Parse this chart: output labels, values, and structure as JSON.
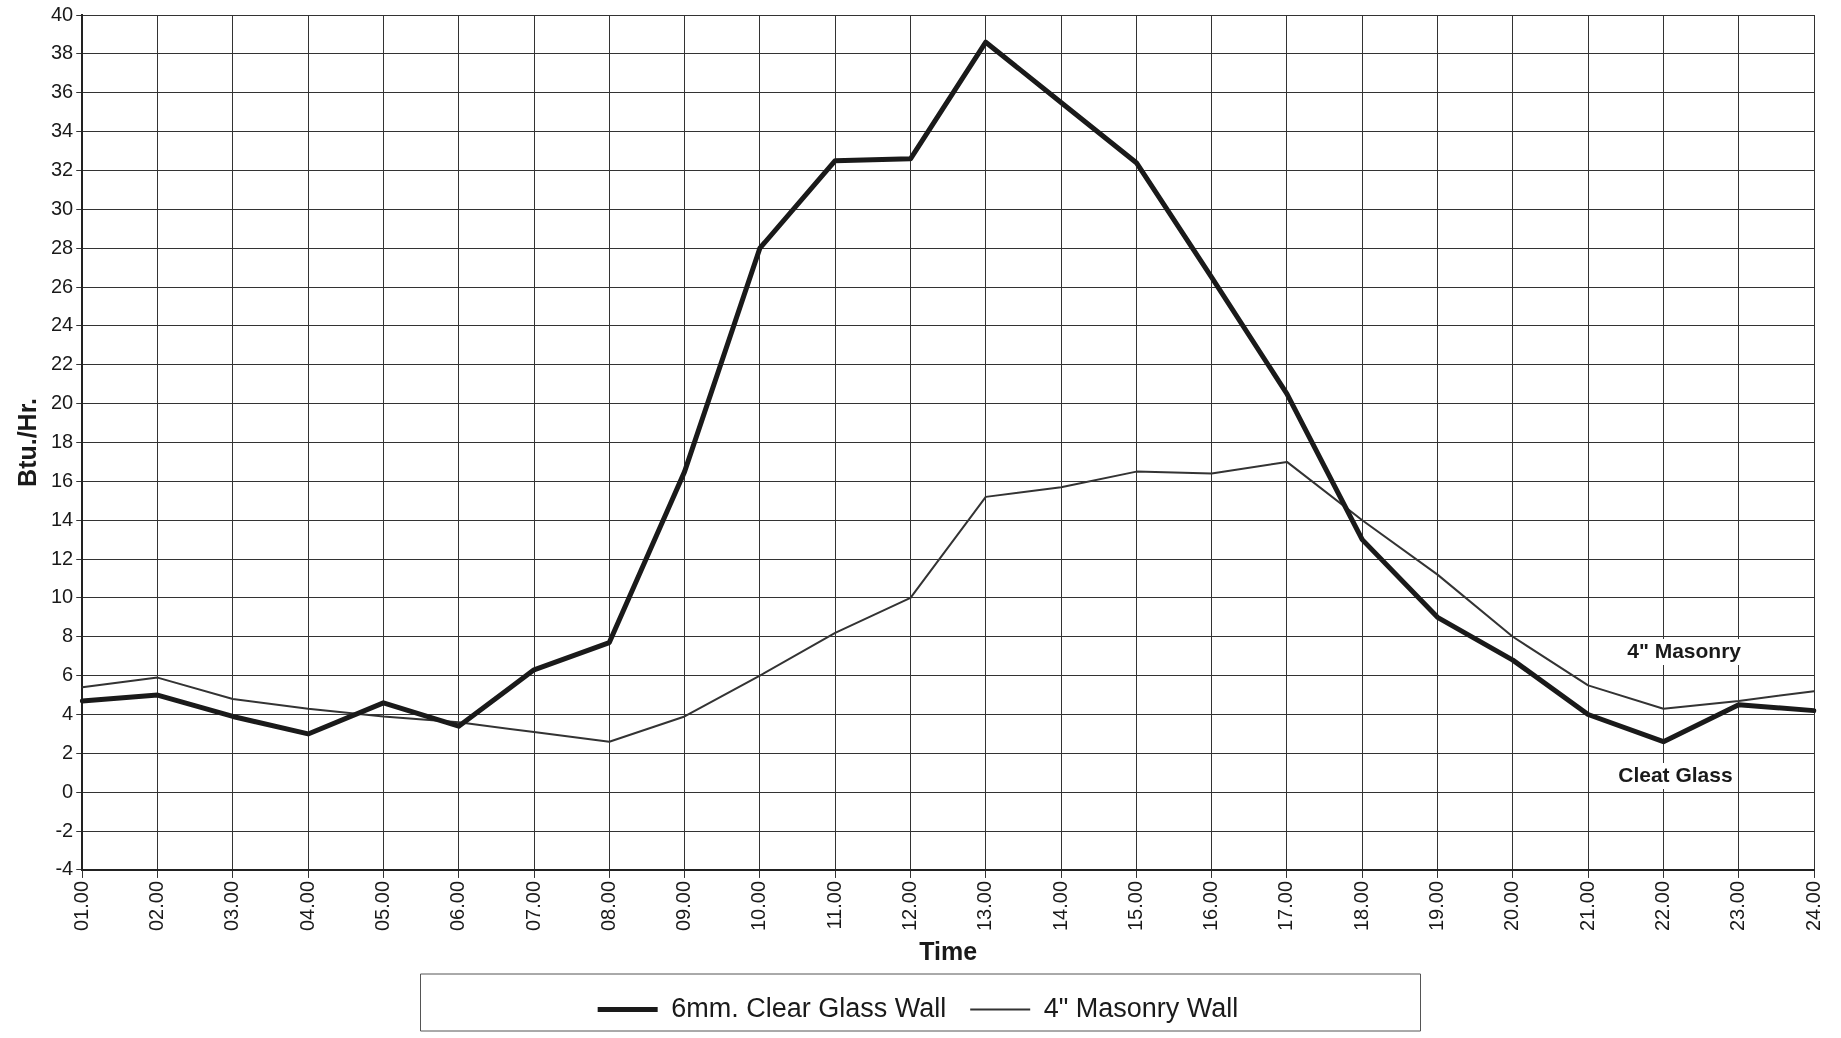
{
  "chart_data": {
    "type": "line",
    "xlabel": "Time",
    "ylabel": "Btu./Hr.",
    "categories": [
      "01.00",
      "02.00",
      "03.00",
      "04.00",
      "05.00",
      "06.00",
      "07.00",
      "08.00",
      "09.00",
      "10.00",
      "11.00",
      "12.00",
      "13.00",
      "14.00",
      "15.00",
      "16.00",
      "17.00",
      "18.00",
      "19.00",
      "20.00",
      "21.00",
      "22.00",
      "23.00",
      "24.00"
    ],
    "series": [
      {
        "name": "6mm. Clear Glass Wall",
        "color": "#1a1a1a",
        "values": [
          4.7,
          5.0,
          3.9,
          3.0,
          4.6,
          3.4,
          6.3,
          7.7,
          16.5,
          28,
          32.5,
          32.6,
          38.6,
          35.5,
          32.4,
          26.5,
          20.5,
          13,
          9,
          6.8,
          4.0,
          2.6,
          4.5,
          4.2
        ]
      },
      {
        "name": "4\" Masonry Wall",
        "color": "#333333",
        "values": [
          5.4,
          5.9,
          4.8,
          4.3,
          3.9,
          3.6,
          3.1,
          2.6,
          3.9,
          6.0,
          8.2,
          10.0,
          15.2,
          15.7,
          16.5,
          16.4,
          17.0,
          14.0,
          11.2,
          8.0,
          5.5,
          4.3,
          4.7,
          5.2
        ]
      }
    ],
    "annotations": [
      "4\" Masonry",
      "Cleat Glass"
    ],
    "ylim": [
      -4,
      40
    ],
    "yticks": [
      -4,
      -2,
      0,
      2,
      4,
      6,
      8,
      10,
      12,
      14,
      16,
      18,
      20,
      22,
      24,
      26,
      28,
      30,
      32,
      34,
      36,
      38,
      40
    ],
    "grid": true,
    "legend": "bottom",
    "marker": "none",
    "line_style": "solid"
  }
}
